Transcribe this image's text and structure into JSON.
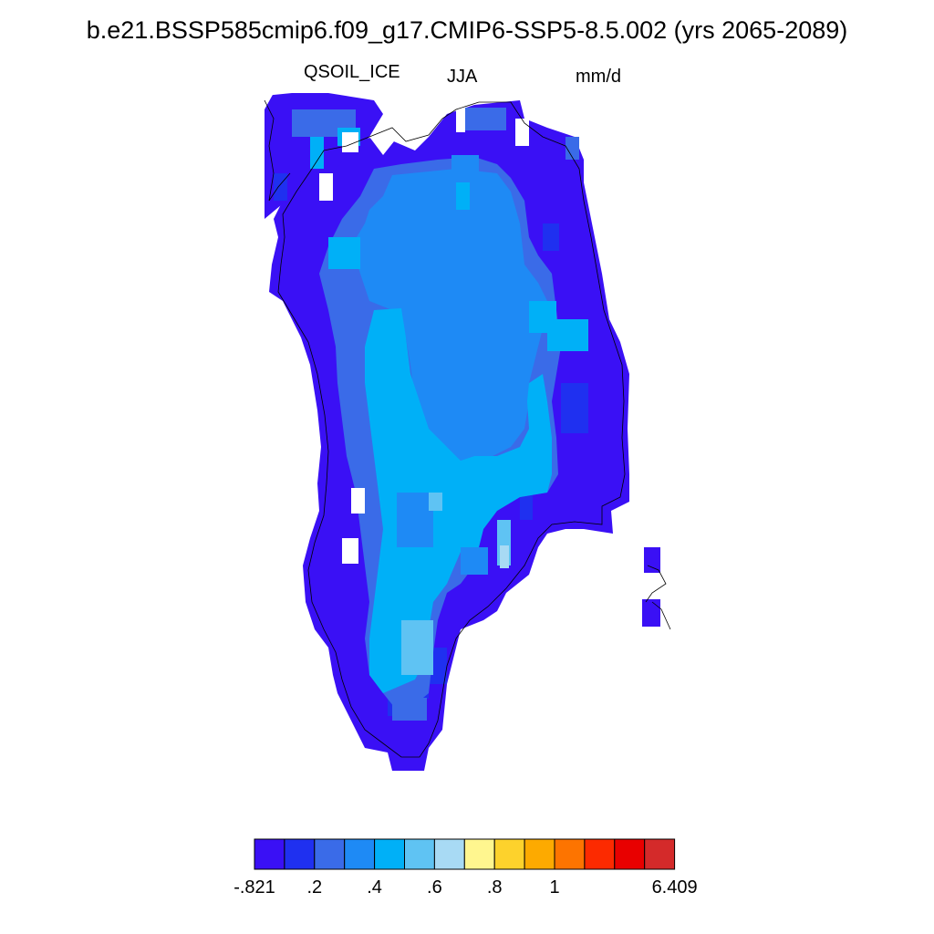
{
  "title": "b.e21.BSSP585cmip6.f09_g17.CMIP6-SSP5-8.5.002 (yrs 2065-2089)",
  "variable": "QSOIL_ICE",
  "season": "JJA",
  "units": "mm/d",
  "colorbar": {
    "colors": [
      "#3a10f5",
      "#1f30f0",
      "#3a6be8",
      "#1e8af5",
      "#00b0f7",
      "#5fc3f3",
      "#a8daf4",
      "#fff68f",
      "#fdd22c",
      "#fdaa00",
      "#fd7400",
      "#fc2a00",
      "#e80000",
      "#d42a2a"
    ],
    "tick_labels": [
      {
        "index": 0,
        "text": "-.821"
      },
      {
        "index": 2,
        "text": ".2"
      },
      {
        "index": 4,
        "text": ".4"
      },
      {
        "index": 6,
        "text": ".6"
      },
      {
        "index": 8,
        "text": ".8"
      },
      {
        "index": 10,
        "text": "1"
      },
      {
        "index": 14,
        "text": "6.409"
      }
    ]
  }
}
